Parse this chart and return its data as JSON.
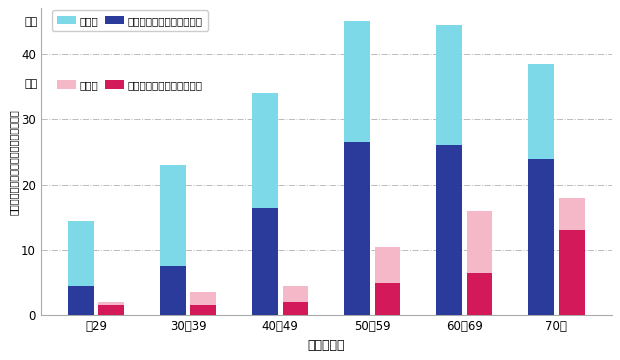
{
  "categories": [
    "～29",
    "30～39",
    "40～49",
    "50～59",
    "60～69",
    "70～"
  ],
  "male_metabo": [
    4.5,
    7.5,
    16.5,
    26.5,
    26.0,
    24.0
  ],
  "male_yobigun": [
    10.0,
    15.5,
    17.5,
    18.5,
    18.5,
    14.5
  ],
  "female_metabo": [
    1.5,
    1.5,
    2.0,
    5.0,
    6.5,
    13.0
  ],
  "female_yobigun": [
    0.5,
    2.0,
    2.5,
    5.5,
    9.5,
    5.0
  ],
  "color_male_yobigun": "#7DD9E8",
  "color_male_metabo": "#2B3B9C",
  "color_female_yobigun": "#F4B8C8",
  "color_female_metabo": "#D4195A",
  "ylabel": "メタボリックシンドロームの割合（％）",
  "xlabel": "年齢（歳）",
  "ylim_max": 47,
  "yticks": [
    0,
    10,
    20,
    30,
    40
  ],
  "bar_width": 0.28,
  "bar_gap": 0.05,
  "legend_male": "男性",
  "legend_female": "女性",
  "legend_yobigun": "予備群",
  "legend_metabo": "メタボリックシンドローム",
  "background_color": "#FFFFFF",
  "grid_color": "#BBBBBB"
}
